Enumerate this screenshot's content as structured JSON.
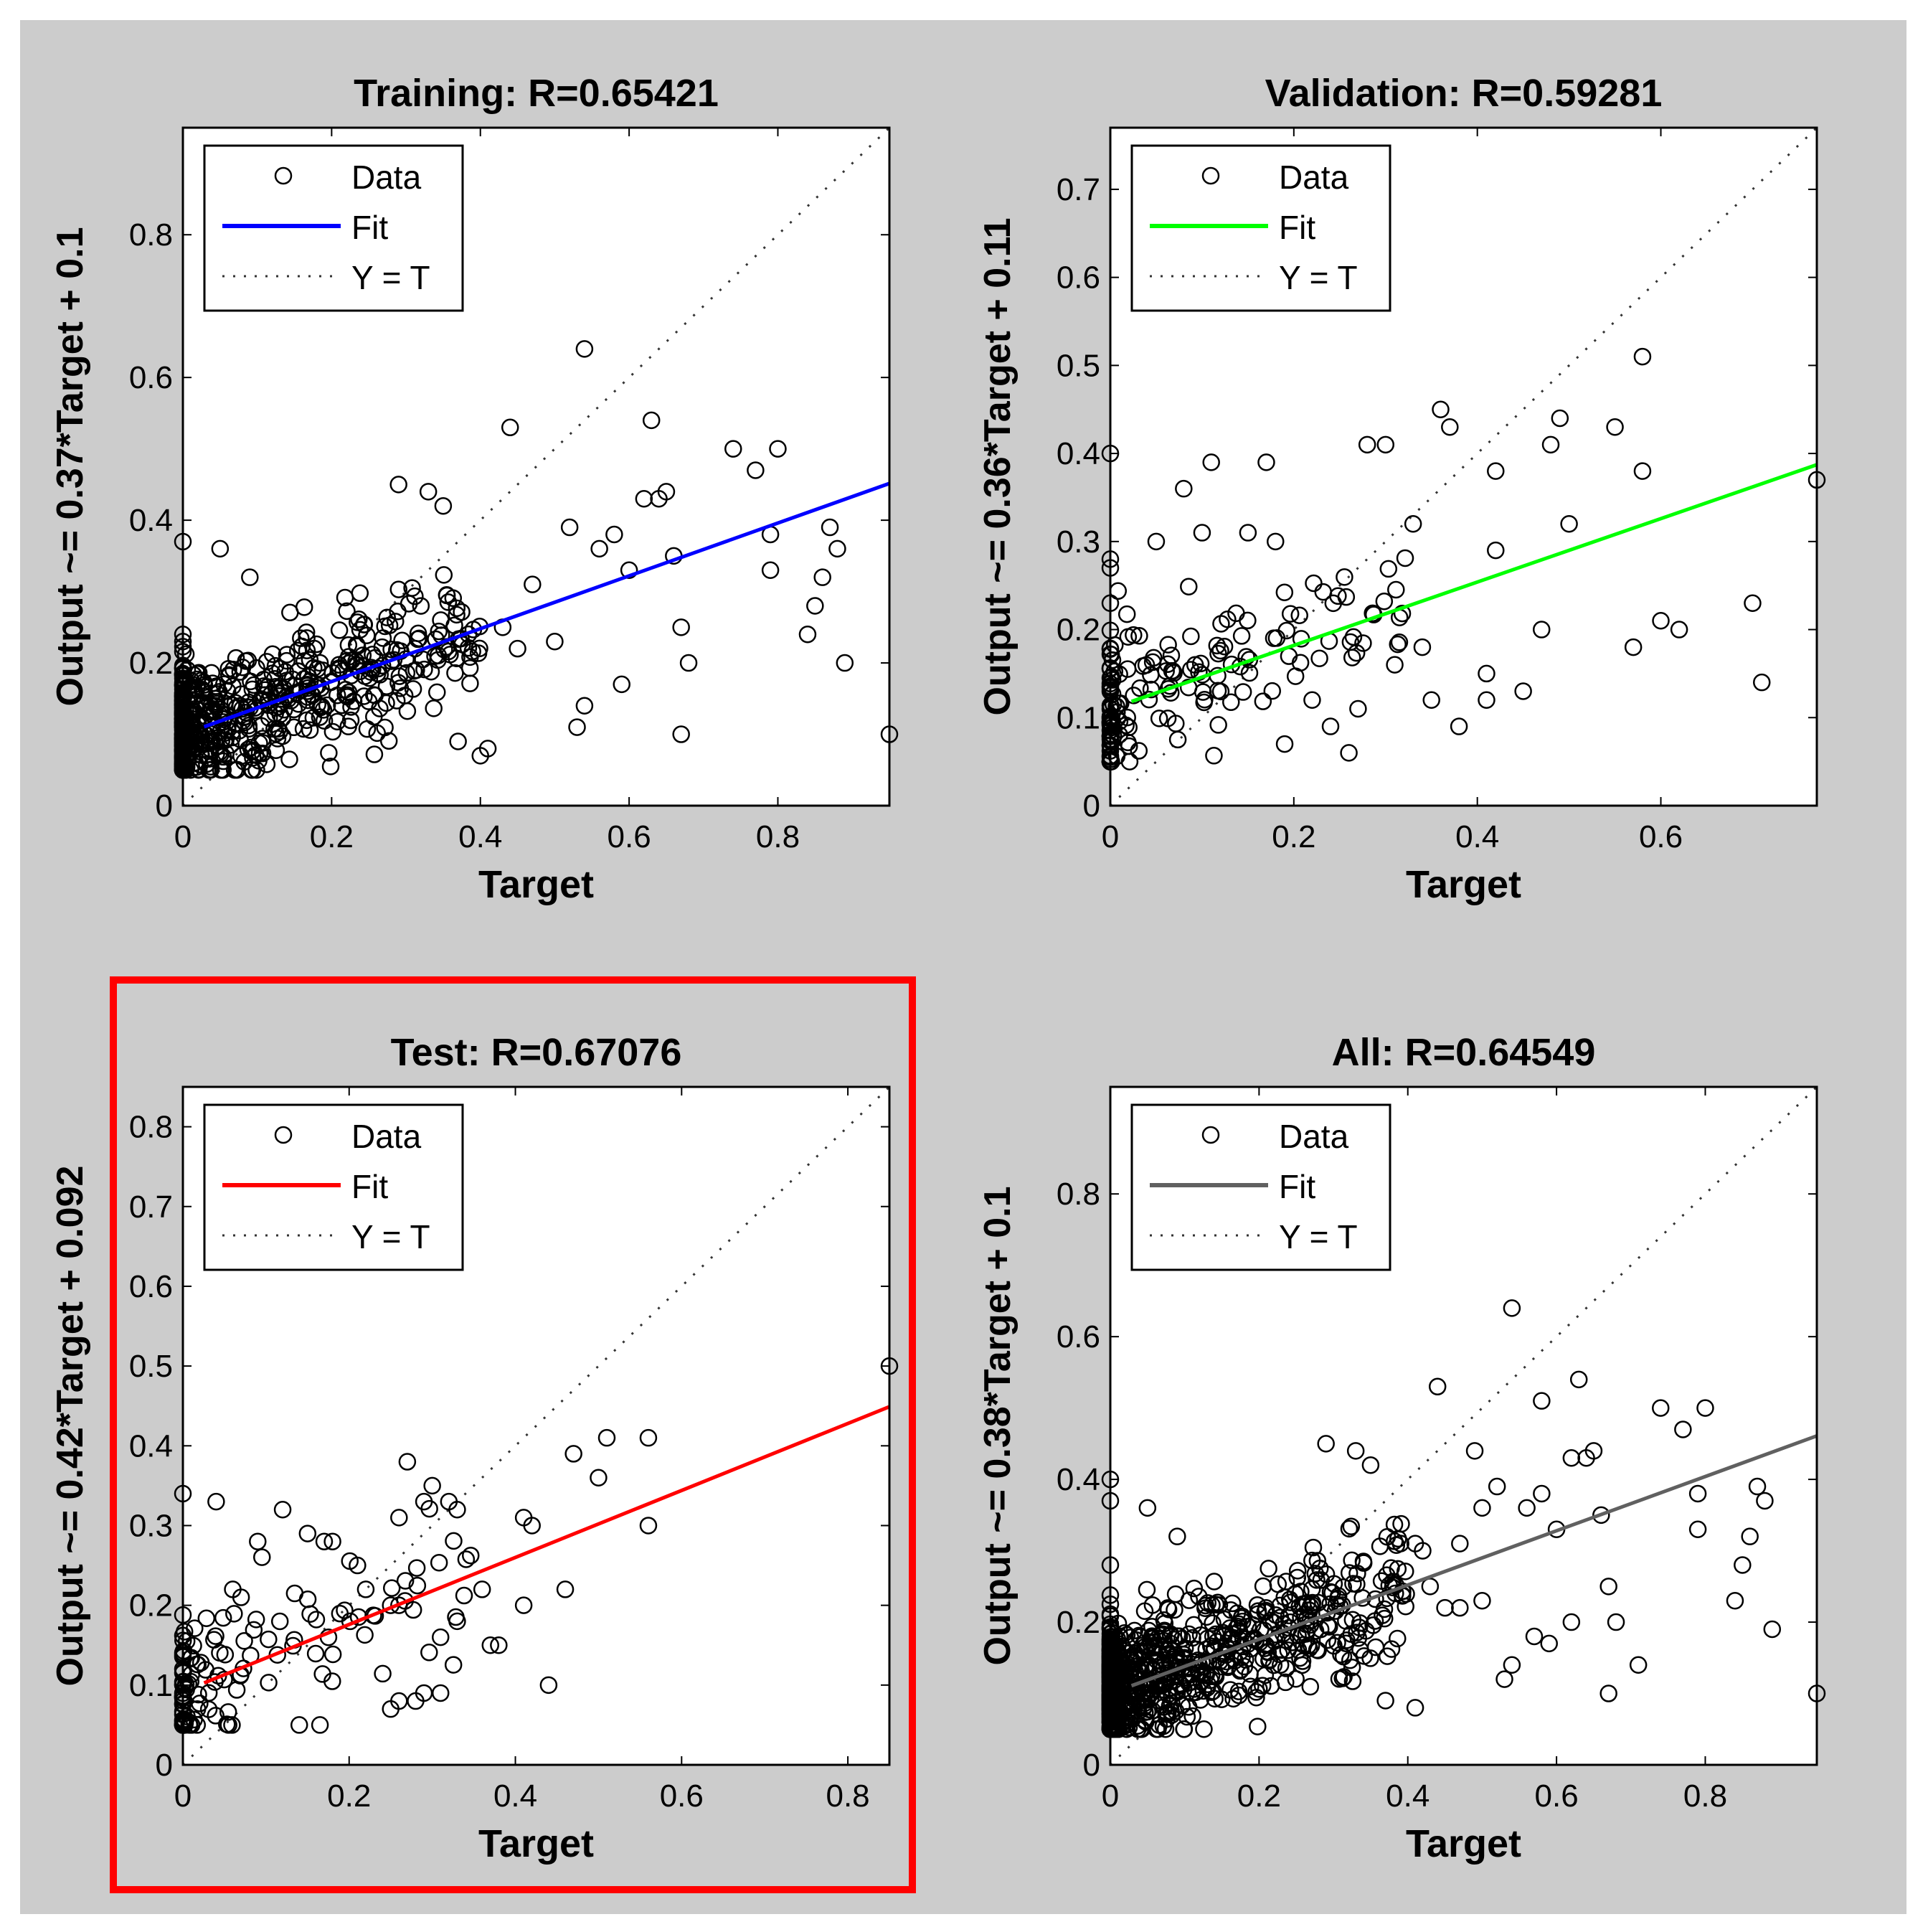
{
  "highlight_color": "#ff0000",
  "chart_data": [
    {
      "type": "scatter",
      "title": "Training: R=0.65421",
      "xlabel": "Target",
      "ylabel": "Output ~= 0.37*Target + 0.1",
      "xlim": [
        0,
        0.95
      ],
      "ylim": [
        0,
        0.95
      ],
      "xticks": [
        0,
        0.2,
        0.4,
        0.6,
        0.8
      ],
      "yticks": [
        0,
        0.2,
        0.4,
        0.6,
        0.8
      ],
      "fit": {
        "slope": 0.37,
        "intercept": 0.1,
        "color": "#0000ff"
      },
      "legend": {
        "data": "Data",
        "fit": "Fit",
        "identity": "Y = T",
        "position": "top-left"
      },
      "highlighted": false,
      "cluster": {
        "n": 650,
        "seed": 11,
        "slope": 0.37,
        "intercept": 0.1
      },
      "points": [
        [
          0.54,
          0.64
        ],
        [
          0.44,
          0.53
        ],
        [
          0.63,
          0.54
        ],
        [
          0.74,
          0.5
        ],
        [
          0.8,
          0.5
        ],
        [
          0.77,
          0.47
        ],
        [
          0.52,
          0.39
        ],
        [
          0.87,
          0.39
        ],
        [
          0.88,
          0.36
        ],
        [
          0.79,
          0.38
        ],
        [
          0.79,
          0.33
        ],
        [
          0.86,
          0.32
        ],
        [
          0.66,
          0.35
        ],
        [
          0.85,
          0.28
        ],
        [
          0.84,
          0.24
        ],
        [
          0.89,
          0.2
        ],
        [
          0.67,
          0.25
        ],
        [
          0.68,
          0.2
        ],
        [
          0.67,
          0.1
        ],
        [
          0.59,
          0.17
        ],
        [
          0.54,
          0.14
        ],
        [
          0.53,
          0.11
        ],
        [
          0.41,
          0.08
        ],
        [
          0.37,
          0.09
        ],
        [
          0.4,
          0.07
        ],
        [
          0.64,
          0.43
        ],
        [
          0.65,
          0.44
        ],
        [
          0.62,
          0.43
        ],
        [
          0.58,
          0.38
        ],
        [
          0.56,
          0.36
        ],
        [
          0.6,
          0.33
        ],
        [
          0.47,
          0.31
        ],
        [
          0.43,
          0.25
        ],
        [
          0.45,
          0.22
        ],
        [
          0.5,
          0.23
        ],
        [
          0.35,
          0.42
        ],
        [
          0.33,
          0.44
        ],
        [
          0.29,
          0.45
        ],
        [
          0.95,
          0.1
        ],
        [
          0.0,
          0.37
        ],
        [
          0.0,
          0.24
        ],
        [
          0.0,
          0.23
        ],
        [
          0.05,
          0.36
        ],
        [
          0.09,
          0.32
        ]
      ]
    },
    {
      "type": "scatter",
      "title": "Validation: R=0.59281",
      "xlabel": "Target",
      "ylabel": "Output ~= 0.36*Target + 0.11",
      "xlim": [
        0,
        0.77
      ],
      "ylim": [
        0,
        0.77
      ],
      "xticks": [
        0,
        0.2,
        0.4,
        0.6
      ],
      "yticks": [
        0,
        0.1,
        0.2,
        0.3,
        0.4,
        0.5,
        0.6,
        0.7
      ],
      "fit": {
        "slope": 0.36,
        "intercept": 0.11,
        "color": "#00ff00"
      },
      "legend": {
        "data": "Data",
        "fit": "Fit",
        "identity": "Y = T",
        "position": "top-left"
      },
      "highlighted": false,
      "cluster": {
        "n": 170,
        "seed": 23,
        "slope": 0.36,
        "intercept": 0.11
      },
      "points": [
        [
          0.0,
          0.4
        ],
        [
          0.0,
          0.28
        ],
        [
          0.0,
          0.27
        ],
        [
          0.0,
          0.23
        ],
        [
          0.58,
          0.51
        ],
        [
          0.36,
          0.45
        ],
        [
          0.37,
          0.43
        ],
        [
          0.28,
          0.41
        ],
        [
          0.3,
          0.41
        ],
        [
          0.42,
          0.38
        ],
        [
          0.49,
          0.44
        ],
        [
          0.48,
          0.41
        ],
        [
          0.55,
          0.43
        ],
        [
          0.58,
          0.38
        ],
        [
          0.77,
          0.37
        ],
        [
          0.17,
          0.39
        ],
        [
          0.11,
          0.39
        ],
        [
          0.08,
          0.36
        ],
        [
          0.05,
          0.3
        ],
        [
          0.1,
          0.31
        ],
        [
          0.15,
          0.31
        ],
        [
          0.18,
          0.3
        ],
        [
          0.33,
          0.32
        ],
        [
          0.5,
          0.32
        ],
        [
          0.42,
          0.29
        ],
        [
          0.7,
          0.23
        ],
        [
          0.62,
          0.2
        ],
        [
          0.57,
          0.18
        ],
        [
          0.6,
          0.21
        ],
        [
          0.71,
          0.14
        ],
        [
          0.47,
          0.2
        ],
        [
          0.45,
          0.13
        ],
        [
          0.41,
          0.12
        ],
        [
          0.41,
          0.15
        ],
        [
          0.38,
          0.09
        ],
        [
          0.35,
          0.12
        ],
        [
          0.26,
          0.06
        ],
        [
          0.22,
          0.12
        ],
        [
          0.24,
          0.09
        ],
        [
          0.27,
          0.11
        ],
        [
          0.31,
          0.16
        ],
        [
          0.19,
          0.07
        ],
        [
          0.34,
          0.18
        ]
      ]
    },
    {
      "type": "scatter",
      "title": "Test: R=0.67076",
      "xlabel": "Target",
      "ylabel": "Output ~= 0.42*Target + 0.092",
      "xlim": [
        0,
        0.85
      ],
      "ylim": [
        0,
        0.85
      ],
      "xticks": [
        0,
        0.2,
        0.4,
        0.6,
        0.8
      ],
      "yticks": [
        0,
        0.1,
        0.2,
        0.3,
        0.4,
        0.5,
        0.6,
        0.7,
        0.8
      ],
      "fit": {
        "slope": 0.42,
        "intercept": 0.092,
        "color": "#ff0000"
      },
      "legend": {
        "data": "Data",
        "fit": "Fit",
        "identity": "Y = T",
        "position": "top-left"
      },
      "highlighted": true,
      "cluster": {
        "n": 130,
        "seed": 37,
        "slope": 0.42,
        "intercept": 0.092
      },
      "points": [
        [
          0.85,
          0.5
        ],
        [
          0.0,
          0.34
        ],
        [
          0.04,
          0.33
        ],
        [
          0.12,
          0.32
        ],
        [
          0.27,
          0.38
        ],
        [
          0.3,
          0.35
        ],
        [
          0.32,
          0.33
        ],
        [
          0.33,
          0.32
        ],
        [
          0.29,
          0.33
        ],
        [
          0.26,
          0.31
        ],
        [
          0.41,
          0.31
        ],
        [
          0.42,
          0.3
        ],
        [
          0.47,
          0.39
        ],
        [
          0.51,
          0.41
        ],
        [
          0.56,
          0.41
        ],
        [
          0.5,
          0.36
        ],
        [
          0.56,
          0.3
        ],
        [
          0.46,
          0.22
        ],
        [
          0.41,
          0.2
        ],
        [
          0.36,
          0.22
        ],
        [
          0.37,
          0.15
        ],
        [
          0.38,
          0.15
        ],
        [
          0.44,
          0.1
        ],
        [
          0.31,
          0.16
        ],
        [
          0.33,
          0.18
        ],
        [
          0.26,
          0.2
        ],
        [
          0.25,
          0.2
        ],
        [
          0.22,
          0.22
        ],
        [
          0.21,
          0.25
        ],
        [
          0.18,
          0.28
        ],
        [
          0.15,
          0.29
        ],
        [
          0.17,
          0.28
        ],
        [
          0.09,
          0.28
        ],
        [
          0.06,
          0.22
        ],
        [
          0.07,
          0.21
        ],
        [
          0.28,
          0.08
        ],
        [
          0.29,
          0.09
        ],
        [
          0.31,
          0.09
        ],
        [
          0.25,
          0.07
        ],
        [
          0.26,
          0.08
        ],
        [
          0.14,
          0.05
        ]
      ]
    },
    {
      "type": "scatter",
      "title": "All: R=0.64549",
      "xlabel": "Target",
      "ylabel": "Output ~= 0.38*Target + 0.1",
      "xlim": [
        0,
        0.95
      ],
      "ylim": [
        0,
        0.95
      ],
      "xticks": [
        0,
        0.2,
        0.4,
        0.6,
        0.8
      ],
      "yticks": [
        0,
        0.2,
        0.4,
        0.6,
        0.8
      ],
      "fit": {
        "slope": 0.38,
        "intercept": 0.1,
        "color": "#606060"
      },
      "legend": {
        "data": "Data",
        "fit": "Fit",
        "identity": "Y = T",
        "position": "top-left"
      },
      "highlighted": false,
      "cluster": {
        "n": 900,
        "seed": 53,
        "slope": 0.38,
        "intercept": 0.1
      },
      "points": [
        [
          0.54,
          0.64
        ],
        [
          0.44,
          0.53
        ],
        [
          0.63,
          0.54
        ],
        [
          0.74,
          0.5
        ],
        [
          0.8,
          0.5
        ],
        [
          0.77,
          0.47
        ],
        [
          0.52,
          0.39
        ],
        [
          0.87,
          0.39
        ],
        [
          0.88,
          0.37
        ],
        [
          0.79,
          0.38
        ],
        [
          0.79,
          0.33
        ],
        [
          0.86,
          0.32
        ],
        [
          0.66,
          0.35
        ],
        [
          0.85,
          0.28
        ],
        [
          0.84,
          0.23
        ],
        [
          0.89,
          0.19
        ],
        [
          0.67,
          0.25
        ],
        [
          0.68,
          0.2
        ],
        [
          0.67,
          0.1
        ],
        [
          0.59,
          0.17
        ],
        [
          0.54,
          0.14
        ],
        [
          0.53,
          0.12
        ],
        [
          0.41,
          0.08
        ],
        [
          0.37,
          0.09
        ],
        [
          0.95,
          0.1
        ],
        [
          0.64,
          0.43
        ],
        [
          0.65,
          0.44
        ],
        [
          0.62,
          0.43
        ],
        [
          0.58,
          0.38
        ],
        [
          0.56,
          0.36
        ],
        [
          0.6,
          0.33
        ],
        [
          0.47,
          0.31
        ],
        [
          0.43,
          0.25
        ],
        [
          0.45,
          0.22
        ],
        [
          0.5,
          0.23
        ],
        [
          0.35,
          0.42
        ],
        [
          0.33,
          0.44
        ],
        [
          0.29,
          0.45
        ],
        [
          0.0,
          0.4
        ],
        [
          0.0,
          0.37
        ],
        [
          0.0,
          0.28
        ],
        [
          0.05,
          0.36
        ],
        [
          0.09,
          0.32
        ],
        [
          0.58,
          0.51
        ],
        [
          0.5,
          0.36
        ],
        [
          0.49,
          0.44
        ],
        [
          0.42,
          0.3
        ],
        [
          0.41,
          0.31
        ],
        [
          0.71,
          0.14
        ],
        [
          0.62,
          0.2
        ],
        [
          0.57,
          0.18
        ],
        [
          0.47,
          0.22
        ]
      ]
    }
  ]
}
